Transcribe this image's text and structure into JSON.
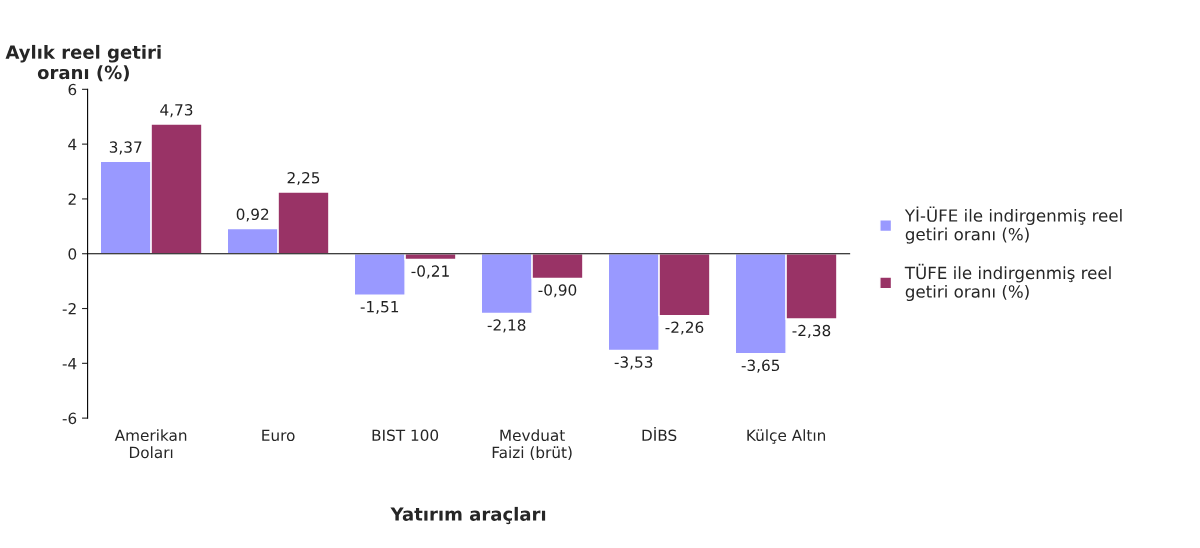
{
  "chart_data": {
    "type": "bar",
    "ylabel": "Aylık reel getiri\noranı (%)",
    "xlabel": "Yatırım araçları",
    "categories": [
      "Amerikan\nDoları",
      "Euro",
      "BIST 100",
      "Mevduat\nFaizi (brüt)",
      "DİBS",
      "Külçe Altın"
    ],
    "series": [
      {
        "name": "Yİ-ÜFE ile indirgenmiş reel\ngetiri oranı (%)",
        "color": "#9999ff",
        "values": [
          3.37,
          0.92,
          -1.51,
          -2.18,
          -3.53,
          -3.65
        ],
        "value_labels": [
          "3,37",
          "0,92",
          "-1,51",
          "-2,18",
          "-3,53",
          "-3,65"
        ]
      },
      {
        "name": "TÜFE ile indirgenmiş reel\ngetiri oranı (%)",
        "color": "#993366",
        "values": [
          4.73,
          2.25,
          -0.21,
          -0.9,
          -2.26,
          -2.38
        ],
        "value_labels": [
          "4,73",
          "2,25",
          "-0,21",
          "-0,90",
          "-2,26",
          "-2,38"
        ]
      }
    ],
    "ylim": [
      -6,
      6
    ],
    "yticks": [
      -6,
      -4,
      -2,
      0,
      2,
      4,
      6
    ],
    "legend": "right"
  }
}
